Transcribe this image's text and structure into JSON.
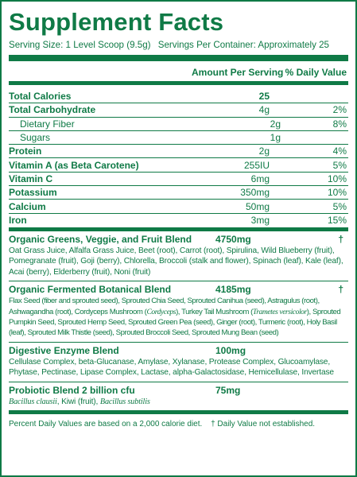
{
  "title": "Supplement Facts",
  "serving": {
    "size": "Serving Size: 1 Level Scoop (9.5g)",
    "per_container": "Servings Per Container: Approximately 25"
  },
  "columns": {
    "amount": "Amount Per Serving",
    "dv": "% Daily Value"
  },
  "nutrients": [
    {
      "name": "Total Calories",
      "amount": "25",
      "dv": ""
    },
    {
      "name": "Total Carbohydrate",
      "amount": "4g",
      "dv": "2%"
    },
    {
      "name": "Dietary Fiber",
      "amount": "2g",
      "dv": "8%"
    },
    {
      "name": "Sugars",
      "amount": "1g",
      "dv": ""
    },
    {
      "name": "Protein",
      "amount": "2g",
      "dv": "4%"
    },
    {
      "name": "Vitamin A (as Beta Carotene)",
      "amount": "255IU",
      "dv": "5%"
    },
    {
      "name": "Vitamin C",
      "amount": "6mg",
      "dv": "10%"
    },
    {
      "name": "Potassium",
      "amount": "350mg",
      "dv": "10%"
    },
    {
      "name": "Calcium",
      "amount": "50mg",
      "dv": "5%"
    },
    {
      "name": "Iron",
      "amount": "3mg",
      "dv": "15%"
    }
  ],
  "blends": {
    "greens": {
      "name": "Organic Greens, Veggie, and Fruit Blend",
      "amount": "4750mg",
      "dv": "†",
      "ingredients": "Oat Grass Juice, Alfalfa Grass Juice, Beet (root), Carrot (root), Spirulina, Wild Blueberry (fruit), Pomegranate (fruit), Goji (berry), Chlorella, Broccoli (stalk and flower), Spinach (leaf), Kale (leaf), Acai (berry), Elderberry (fruit), Noni (fruit)"
    },
    "botanical": {
      "name": "Organic Fermented Botanical Blend",
      "amount": "4185mg",
      "dv": "†",
      "ingredients_a": "Flax Seed (fiber and sprouted seed), Sprouted Chia Seed, Sprouted Canihua (seed), Astragulus (root), Ashwagandha (root), Cordyceps Mushroom (",
      "cordyceps_latin": "Cordyceps",
      "ingredients_b": "), Turkey Tail Mushroom (",
      "turkey_tail_latin": "Trametes versicolor",
      "ingredients_c": "), Sprouted Pumpkin Seed, Sprouted Hemp Seed, Sprouted Green Pea (seed), Ginger (root), Turmeric (root), Holy Basil (leaf), Sprouted Milk Thistle (seed), Sprouted Broccoli Seed, Sprouted Mung Bean (seed)"
    },
    "enzyme": {
      "name": "Digestive Enzyme Blend",
      "amount": "100mg",
      "dv": "",
      "ingredients": "Cellulase Complex, beta-Glucanase, Amylase, Xylanase, Protease Complex, Glucoamylase, Phytase, Pectinase, Lipase Complex, Lactase, alpha-Galactosidase, Hemicellulase, Invertase"
    },
    "probiotic": {
      "name": "Probiotic Blend 2 billion cfu",
      "amount": "75mg",
      "dv": "",
      "latin_1": "Bacillus clausii",
      "middle": ", Kiwi (fruit), ",
      "latin_2": "Bacillus subtilis"
    }
  },
  "footnote": {
    "percent": "Percent Daily Values are based on a 2,000 calorie diet.",
    "dagger": "† Daily Value not established."
  },
  "colors": {
    "brand_green": "#0f7a46",
    "background": "#ffffff"
  }
}
